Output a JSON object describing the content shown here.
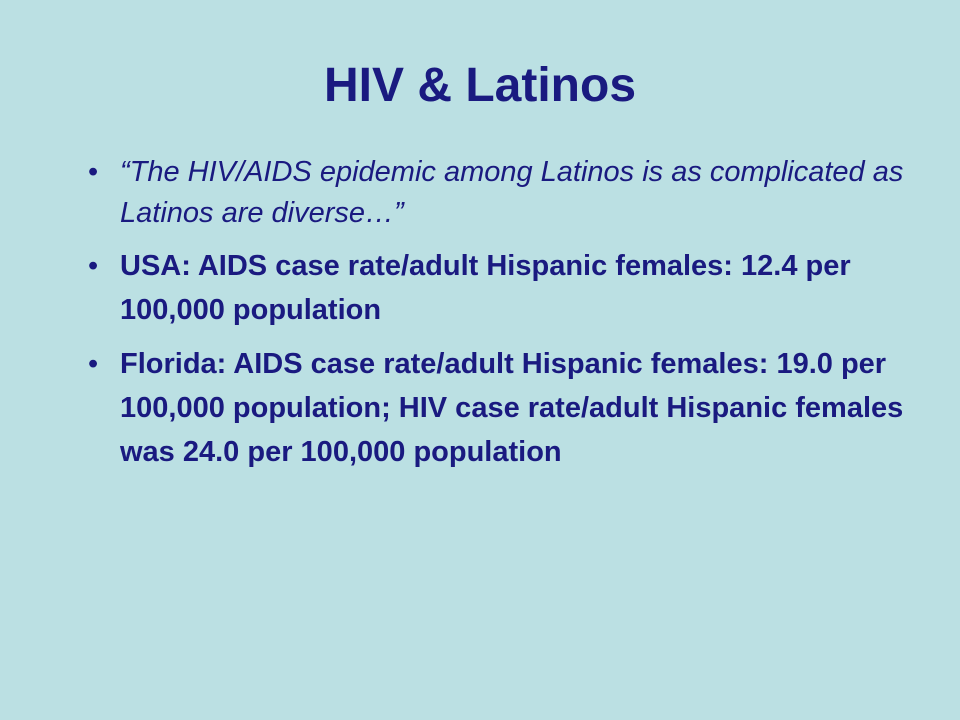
{
  "slide": {
    "title": "HIV & Latinos",
    "bullets": [
      "“The HIV/AIDS epidemic among Latinos is as complicated as Latinos are diverse…”",
      "USA: AIDS case rate/adult Hispanic females: 12.4 per 100,000 population",
      "Florida: AIDS case rate/adult Hispanic females: 19.0 per 100,000 population; HIV case rate/adult Hispanic females was 24.0 per 100,000 population"
    ]
  }
}
